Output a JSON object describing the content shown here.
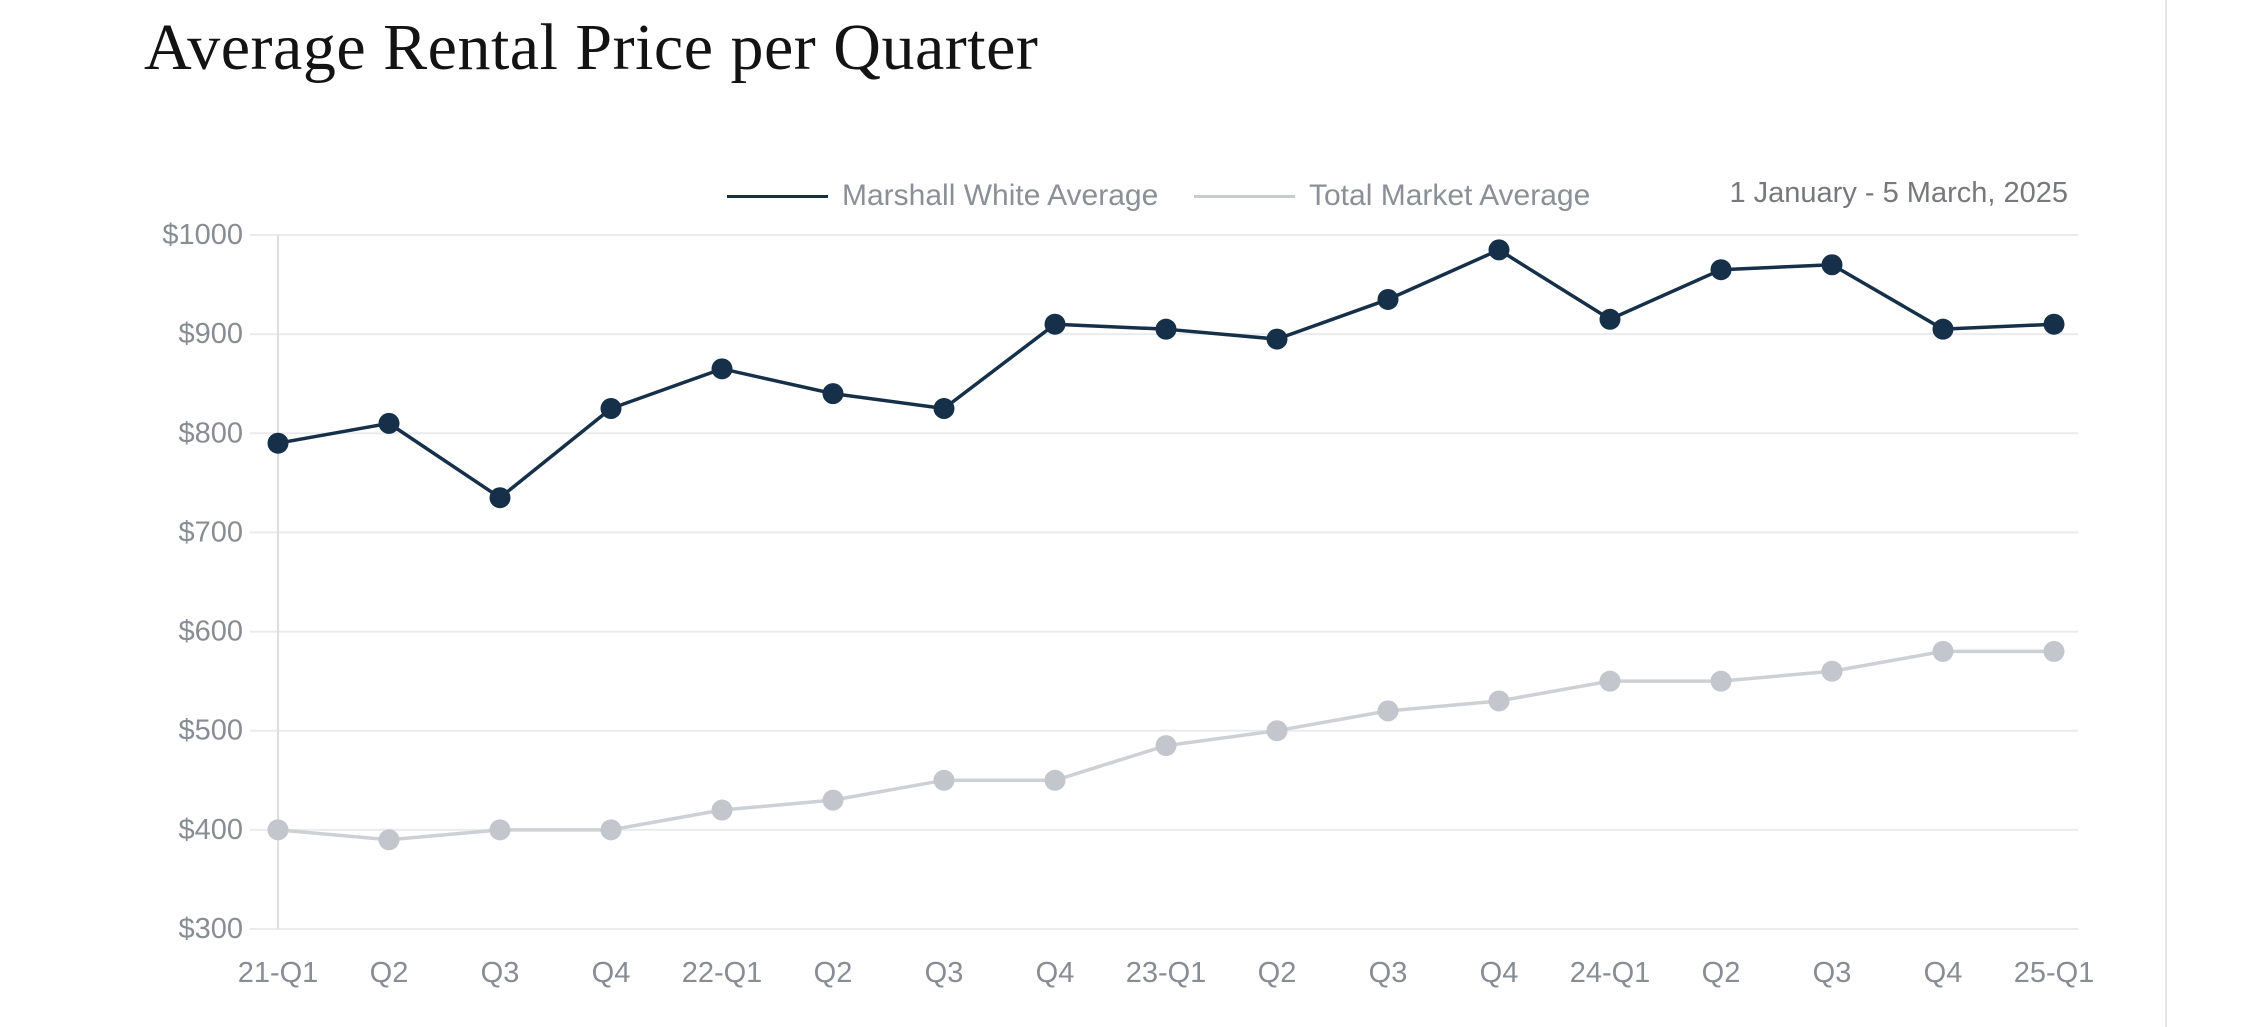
{
  "page": {
    "title": "Average Rental Price per Quarter",
    "date_range": "1 January - 5 March, 2025"
  },
  "legend": [
    {
      "label": "Marshall White Average",
      "color": "#16304a"
    },
    {
      "label": "Total Market Average",
      "color": "#c8cbd0"
    }
  ],
  "colors": {
    "background": "#ffffff",
    "title_text": "#131313",
    "axis_label_text": "#888c93",
    "legend_text": "#8b8f96",
    "date_text": "#76787c",
    "gridline": "#eaebed",
    "axis_line": "#dcdee1",
    "page_divider": "#e4e5e8",
    "marshall_white": "#16304a",
    "total_market_line": "#cdd0d5",
    "total_market_dot": "#c3c6cc"
  },
  "chart_data": {
    "type": "line",
    "title": "Average Rental Price per Quarter",
    "subtitle": "1 January - 5 March, 2025",
    "categories": [
      "21-Q1",
      "Q2",
      "Q3",
      "Q4",
      "22-Q1",
      "Q2",
      "Q3",
      "Q4",
      "23-Q1",
      "Q2",
      "Q3",
      "Q4",
      "24-Q1",
      "Q2",
      "Q3",
      "Q4",
      "25-Q1"
    ],
    "series": [
      {
        "name": "Marshall White Average",
        "color": "#16304a",
        "dot_color": "#16304a",
        "values": [
          790,
          810,
          735,
          825,
          865,
          840,
          825,
          910,
          905,
          895,
          935,
          985,
          915,
          965,
          970,
          905,
          910
        ]
      },
      {
        "name": "Total Market Average",
        "color": "#cdd0d5",
        "dot_color": "#c3c6cc",
        "values": [
          400,
          390,
          400,
          400,
          420,
          430,
          450,
          450,
          485,
          500,
          520,
          530,
          550,
          550,
          560,
          580,
          580
        ]
      }
    ],
    "y_ticks": [
      {
        "value": 1000,
        "label": "$1000"
      },
      {
        "value": 900,
        "label": "$900"
      },
      {
        "value": 800,
        "label": "$800"
      },
      {
        "value": 700,
        "label": "$700"
      },
      {
        "value": 600,
        "label": "$600"
      },
      {
        "value": 500,
        "label": "$500"
      },
      {
        "value": 400,
        "label": "$400"
      },
      {
        "value": 300,
        "label": "$300"
      }
    ],
    "ylim": [
      300,
      1000
    ],
    "xlabel": "",
    "ylabel": "",
    "grid": true,
    "legend_position": "top"
  }
}
